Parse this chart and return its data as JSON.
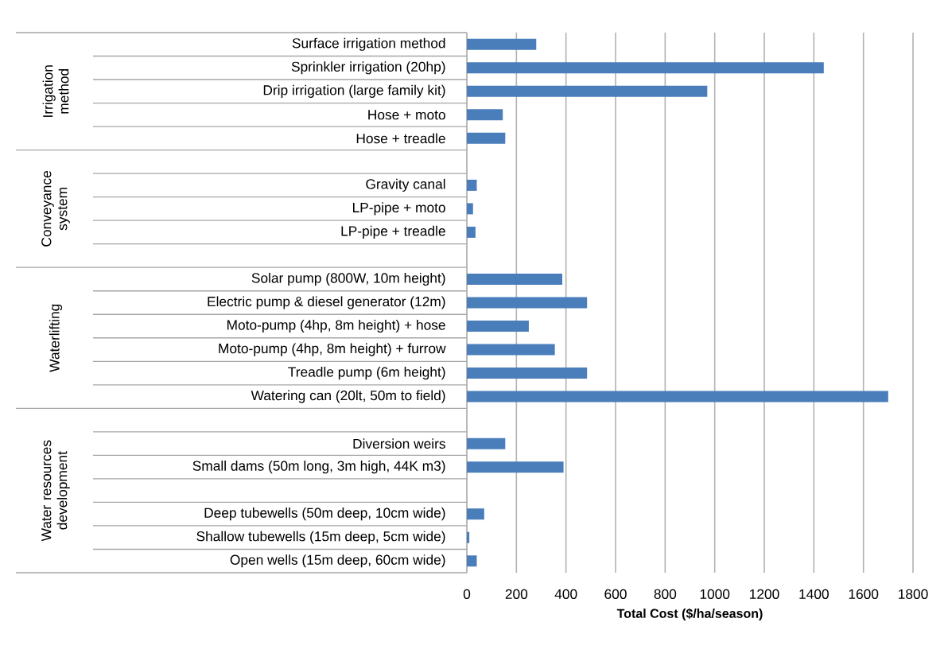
{
  "chart_data": {
    "type": "bar",
    "orientation": "horizontal",
    "xlabel": "Total Cost ($/ha/season)",
    "categories": [
      "Surface irrigation method",
      "Sprinkler irrigation (20hp)",
      "Drip irrigation (large family kit)",
      "Hose + moto",
      "Hose + treadle",
      null,
      "Gravity canal",
      "LP-pipe + moto",
      "LP-pipe + treadle",
      null,
      "Solar pump (800W, 10m height)",
      "Electric pump & diesel generator (12m)",
      "Moto-pump (4hp, 8m height) + hose",
      "Moto-pump (4hp, 8m height) + furrow",
      "Treadle pump (6m height)",
      "Watering can (20lt, 50m to field)",
      null,
      "Diversion weirs",
      "Small dams (50m long, 3m high, 44K m3)",
      null,
      "Deep tubewells (50m deep, 10cm wide)",
      "Shallow tubewells (15m deep, 5cm wide)",
      "Open wells (15m deep, 60cm wide)"
    ],
    "values": [
      280,
      1440,
      970,
      145,
      155,
      null,
      40,
      25,
      35,
      null,
      385,
      485,
      250,
      355,
      485,
      1700,
      null,
      155,
      390,
      null,
      70,
      10,
      40
    ],
    "color": "#4a7ebb",
    "xlim": [
      0,
      1800
    ],
    "xticks": [
      0,
      200,
      400,
      600,
      800,
      1000,
      1200,
      1400,
      1600,
      1800
    ],
    "grid": "x",
    "annotations": [
      "Irrigation method",
      "Conveyance system",
      "Waterlifting",
      "Water resources development"
    ]
  }
}
